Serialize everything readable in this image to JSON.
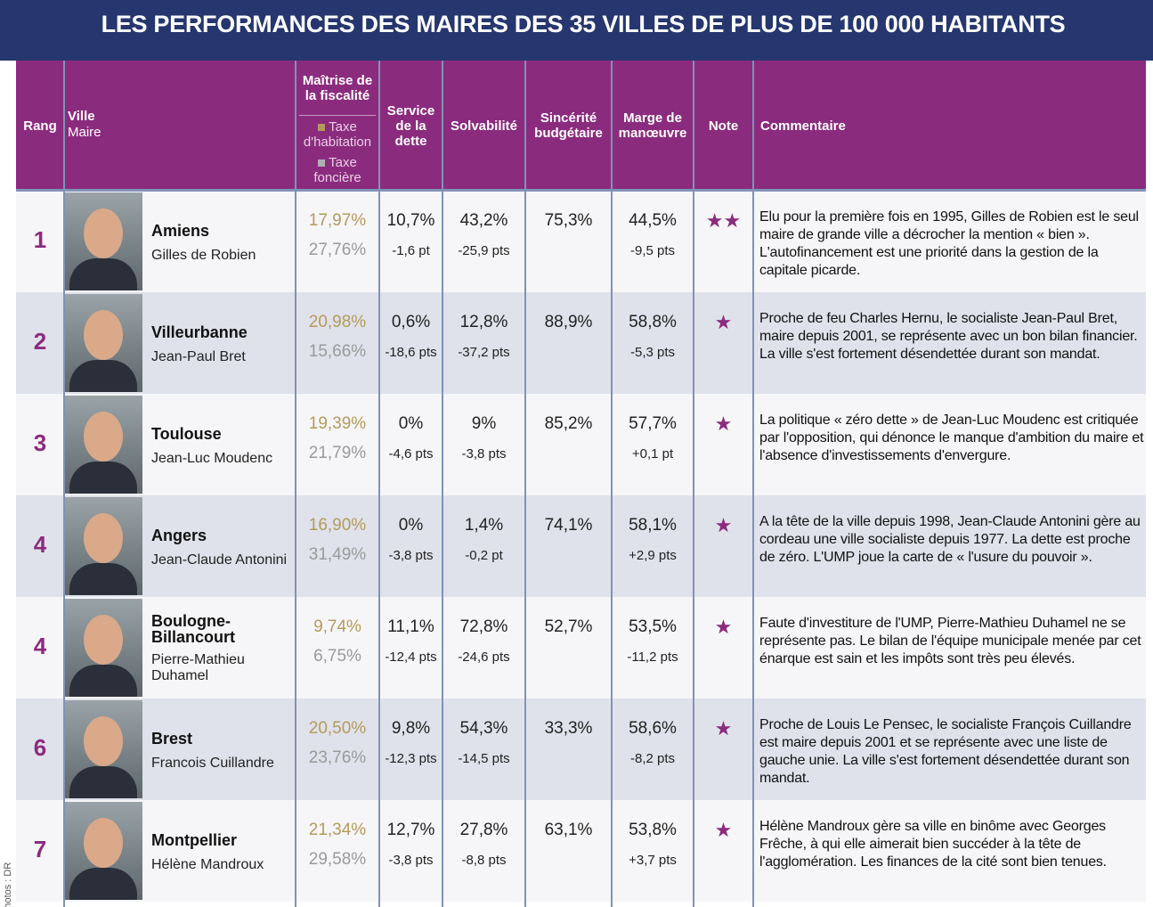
{
  "title": "LES PERFORMANCES DES MAIRES DES 35 VILLES DE PLUS DE 100 000 HABITANTS",
  "credit": "Photos : DR",
  "header": {
    "rang": "Rang",
    "ville": "Ville",
    "maire": "Maire",
    "fiscalite": "Maîtrise de la fiscalité",
    "taxe_habitation": "Taxe d'habitation",
    "taxe_fonciere": "Taxe foncière",
    "service": "Service de la dette",
    "solvabilite": "Solvabilité",
    "sincerite": "Sincérité budgétaire",
    "marge": "Marge de manœuvre",
    "note": "Note",
    "commentaire": "Commentaire"
  },
  "rows": [
    {
      "rang": "1",
      "ville": "Amiens",
      "maire": "Gilles de Robien",
      "taxe_habitation": "17,97%",
      "taxe_fonciere": "27,76%",
      "service": "10,7%",
      "service_var": "-1,6 pt",
      "solvabilite": "43,2%",
      "solvabilite_var": "-25,9 pts",
      "sincerite": "75,3%",
      "marge": "44,5%",
      "marge_var": "-9,5 pts",
      "note": "★★",
      "commentaire": "Elu pour la première fois en 1995, Gilles de Robien est le seul maire de grande ville a décrocher la mention « bien ». L'autofinancement est une priorité dans la gestion de la capitale picarde."
    },
    {
      "rang": "2",
      "ville": "Villeurbanne",
      "maire": "Jean-Paul Bret",
      "taxe_habitation": "20,98%",
      "taxe_fonciere": "15,66%",
      "service": "0,6%",
      "service_var": "-18,6 pts",
      "solvabilite": "12,8%",
      "solvabilite_var": "-37,2 pts",
      "sincerite": "88,9%",
      "marge": "58,8%",
      "marge_var": "-5,3 pts",
      "note": "★",
      "commentaire": "Proche de feu Charles Hernu, le socialiste Jean-Paul Bret, maire depuis 2001, se représente avec un bon bilan financier. La ville s'est fortement désendettée durant son mandat."
    },
    {
      "rang": "3",
      "ville": "Toulouse",
      "maire": "Jean-Luc Moudenc",
      "taxe_habitation": "19,39%",
      "taxe_fonciere": "21,79%",
      "service": "0%",
      "service_var": "-4,6 pts",
      "solvabilite": "9%",
      "solvabilite_var": "-3,8 pts",
      "sincerite": "85,2%",
      "marge": "57,7%",
      "marge_var": "+0,1 pt",
      "note": "★",
      "commentaire": "La politique « zéro dette » de Jean-Luc Moudenc est critiquée par l'opposition, qui dénonce le manque d'ambition du maire et l'absence d'investissements d'envergure."
    },
    {
      "rang": "4",
      "ville": "Angers",
      "maire": "Jean-Claude Antonini",
      "taxe_habitation": "16,90%",
      "taxe_fonciere": "31,49%",
      "service": "0%",
      "service_var": "-3,8 pts",
      "solvabilite": "1,4%",
      "solvabilite_var": "-0,2 pt",
      "sincerite": "74,1%",
      "marge": "58,1%",
      "marge_var": "+2,9 pts",
      "note": "★",
      "commentaire": "A la tête de la ville depuis 1998, Jean-Claude Antonini gère au cordeau une ville socialiste depuis 1977. La dette est proche de zéro. L'UMP joue la carte de « l'usure du pouvoir »."
    },
    {
      "rang": "4",
      "ville": "Boulogne-Billancourt",
      "maire": "Pierre-Mathieu Duhamel",
      "taxe_habitation": "9,74%",
      "taxe_fonciere": "6,75%",
      "service": "11,1%",
      "service_var": "-12,4 pts",
      "solvabilite": "72,8%",
      "solvabilite_var": "-24,6 pts",
      "sincerite": "52,7%",
      "marge": "53,5%",
      "marge_var": "-11,2 pts",
      "note": "★",
      "commentaire": "Faute d'investiture de l'UMP, Pierre-Mathieu Duhamel ne se représente pas. Le bilan de l'équipe municipale menée par cet énarque est sain et les impôts sont très peu élevés."
    },
    {
      "rang": "6",
      "ville": "Brest",
      "maire": "Francois Cuillandre",
      "taxe_habitation": "20,50%",
      "taxe_fonciere": "23,76%",
      "service": "9,8%",
      "service_var": "-12,3 pts",
      "solvabilite": "54,3%",
      "solvabilite_var": "-14,5 pts",
      "sincerite": "33,3%",
      "marge": "58,6%",
      "marge_var": "-8,2 pts",
      "note": "★",
      "commentaire": "Proche de Louis Le Pensec, le socialiste François Cuillandre est maire depuis 2001 et se représente avec une liste de gauche unie. La ville s'est fortement désendettée durant son mandat."
    },
    {
      "rang": "7",
      "ville": "Montpellier",
      "maire": "Hélène Mandroux",
      "taxe_habitation": "21,34%",
      "taxe_fonciere": "29,58%",
      "service": "12,7%",
      "service_var": "-3,8 pts",
      "solvabilite": "27,8%",
      "solvabilite_var": "-8,8 pts",
      "sincerite": "63,1%",
      "marge": "53,8%",
      "marge_var": "+3,7 pts",
      "note": "★",
      "commentaire": "Hélène Mandroux gère sa ville en binôme avec Georges Frêche, à qui elle aimerait bien succéder à la tête de l'agglomération. Les finances de la cité sont bien tenues."
    }
  ]
}
